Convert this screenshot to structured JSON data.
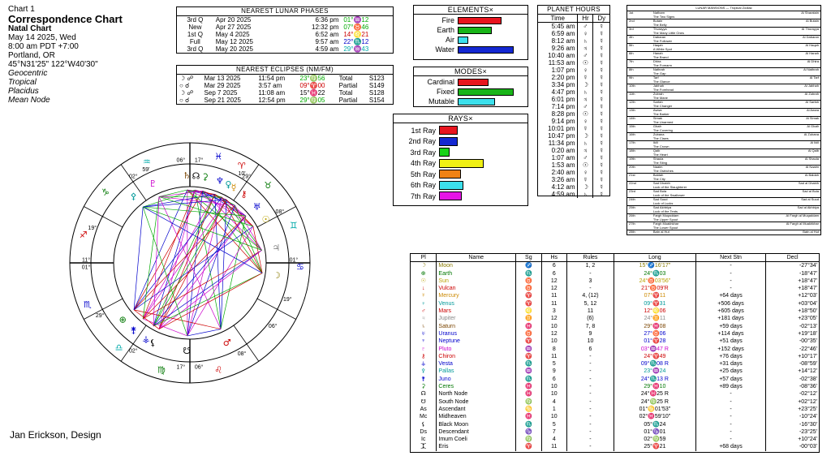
{
  "header": {
    "chart_label": "Chart 1",
    "title": "Correspondence Chart",
    "subtitle": "Natal Chart",
    "date": "May 14 2025, Wed",
    "time": "8:00 am  PDT +7:00",
    "place": "Portland, OR",
    "coords": "45°N31'25\" 122°W40'30\"",
    "options": [
      "Geocentric",
      "Tropical",
      "Placidus",
      "Mean Node"
    ]
  },
  "credit": "Jan Erickson, Design",
  "lunar_phases": {
    "title": "NEAREST LUNAR PHASES",
    "rows": [
      [
        "3rd Q",
        "Apr 20 2025",
        "6:36 pm",
        "01°♒12"
      ],
      [
        "New",
        "Apr 27 2025",
        "12:32 pm",
        "07°♉46"
      ],
      [
        "1st Q",
        "May 4 2025",
        "6:52 am",
        "14°♌21"
      ],
      [
        "Full",
        "May 12 2025",
        "9:57 am",
        "22°♏12"
      ],
      [
        "3rd Q",
        "May 20 2025",
        "4:59 am",
        "29°♒43"
      ]
    ],
    "colors": [
      "#00aa00",
      "#00aa00",
      "#cc0000",
      "#0000cc",
      "#00aaaa"
    ]
  },
  "eclipses": {
    "title": "NEAREST ECLIPSES (NM/FM)",
    "rows": [
      [
        "☽ ☍",
        "Mar 13 2025",
        "11:54 pm",
        "23°♍56",
        "Total",
        "S123"
      ],
      [
        "○ ☌",
        "Mar 29 2025",
        "3:57 am",
        "09°♈00",
        "Partial",
        "S149"
      ],
      [
        "☽ ☍",
        "Sep 7 2025",
        "11:08 am",
        "15°♓22",
        "Total",
        "S128"
      ],
      [
        "○ ☌",
        "Sep 21 2025",
        "12:54 pm",
        "29°♍05",
        "Partial",
        "S154"
      ]
    ],
    "colors": [
      "#00aa00",
      "#cc0000",
      "#000000",
      "#00aa00"
    ]
  },
  "elements": {
    "title": "ELEMENTS×",
    "items": [
      {
        "label": "Fire",
        "value": 0.68,
        "color": "#e8141e"
      },
      {
        "label": "Earth",
        "value": 0.52,
        "color": "#18b418"
      },
      {
        "label": "Air",
        "value": 0.16,
        "color": "#3ce0ec"
      },
      {
        "label": "Water",
        "value": 0.86,
        "color": "#1428d2"
      }
    ]
  },
  "modes": {
    "title": "MODES×",
    "items": [
      {
        "label": "Cardinal",
        "value": 0.48,
        "color": "#e8141e"
      },
      {
        "label": "Fixed",
        "value": 0.86,
        "color": "#18b418"
      },
      {
        "label": "Mutable",
        "value": 0.58,
        "color": "#3ce0ec"
      }
    ]
  },
  "rays": {
    "title": "RAYS×",
    "items": [
      {
        "label": "1st Ray",
        "value": 0.22,
        "color": "#e8141e"
      },
      {
        "label": "2nd Ray",
        "value": 0.22,
        "color": "#1428d2"
      },
      {
        "label": "3rd Ray",
        "value": 0.12,
        "color": "#18d418"
      },
      {
        "label": "4th Ray",
        "value": 0.52,
        "color": "#f0f014"
      },
      {
        "label": "5th Ray",
        "value": 0.25,
        "color": "#f08214"
      },
      {
        "label": "6th Ray",
        "value": 0.28,
        "color": "#3ce0ec"
      },
      {
        "label": "7th Ray",
        "value": 0.26,
        "color": "#e614e6"
      }
    ]
  },
  "planet_hours": {
    "title": "PLANET HOURS",
    "headers": [
      "Time",
      "Hr",
      "Dy"
    ],
    "rows": [
      [
        "5:45 am",
        "♂",
        "☿"
      ],
      [
        "6:59 am",
        "♀",
        "☿"
      ],
      [
        "8:12 am",
        "♄",
        "☿"
      ],
      [
        "9:26 am",
        "♃",
        "☿"
      ],
      [
        "10:40 am",
        "♂",
        "☿"
      ],
      [
        "11:53 am",
        "☉",
        "☿"
      ],
      [
        "1:07 pm",
        "♀",
        "☿"
      ],
      [
        "2:20 pm",
        "☿",
        "☿"
      ],
      [
        "3:34 pm",
        "☽",
        "☿"
      ],
      [
        "4:47 pm",
        "♄",
        "☿"
      ],
      [
        "6:01 pm",
        "♃",
        "☿"
      ],
      [
        "7:14 pm",
        "♂",
        "☿"
      ],
      [
        "8:28 pm",
        "☉",
        "☿"
      ],
      [
        "9:14 pm",
        "♀",
        "☿"
      ],
      [
        "10:01 pm",
        "☿",
        "☿"
      ],
      [
        "10:47 pm",
        "☽",
        "☿"
      ],
      [
        "11:34 pm",
        "♄",
        "☿"
      ],
      [
        "0:20 am",
        "♃",
        "☿"
      ],
      [
        "1:07 am",
        "♂",
        "☿"
      ],
      [
        "1:53 am",
        "☉",
        "☿"
      ],
      [
        "2:40 am",
        "♀",
        "☿"
      ],
      [
        "3:26 am",
        "☿",
        "☿"
      ],
      [
        "4:12 am",
        "☽",
        "☿"
      ],
      [
        "4:59 am",
        "♄",
        "☿"
      ]
    ]
  },
  "lunar_mansions": {
    "title": "LUNAR MANSIONS — Tropical Zodiac",
    "rows": [
      [
        "1st",
        "Natham",
        "Al Sharatain"
      ],
      [
        "",
        "The Two Signs",
        ""
      ],
      [
        "2nd",
        "Butain",
        "Al Butain"
      ],
      [
        "",
        "The Belly",
        ""
      ],
      [
        "3rd",
        "Thurayya",
        "Al Thurayya"
      ],
      [
        "",
        "The Many Little Ones",
        ""
      ],
      [
        "4th",
        "Dabaran",
        "Al Dabaran"
      ],
      [
        "",
        "The Follower",
        ""
      ],
      [
        "5th",
        "Haqah",
        "Al Haqah"
      ],
      [
        "",
        "A White Spot",
        ""
      ],
      [
        "6th",
        "Hanah",
        "Al Hanah"
      ],
      [
        "",
        "The Brand",
        ""
      ],
      [
        "7th",
        "Dhira",
        "Al Dhira"
      ],
      [
        "",
        "The Forearm",
        ""
      ],
      [
        "8th",
        "Nathrah",
        "Al Nathrah"
      ],
      [
        "",
        "The Gap",
        ""
      ],
      [
        "9th",
        "Tarf",
        "Al Tarf"
      ],
      [
        "",
        "The Glance",
        ""
      ],
      [
        "10th",
        "Jabhah",
        "Al Jabhah"
      ],
      [
        "",
        "The Forehead",
        ""
      ],
      [
        "11th",
        "Zubrah",
        "Al Zubrah"
      ],
      [
        "",
        "The Mane",
        ""
      ],
      [
        "12th",
        "Sarfah",
        "Al Sarfah"
      ],
      [
        "",
        "The Changer",
        ""
      ],
      [
        "13th",
        "Awwa",
        "Al Awwa"
      ],
      [
        "",
        "The Barker",
        ""
      ],
      [
        "14th",
        "Simak",
        "Al Simak"
      ],
      [
        "",
        "The Unarmed",
        ""
      ],
      [
        "15th",
        "Ghafr",
        "Al Ghafr"
      ],
      [
        "",
        "The Covering",
        ""
      ],
      [
        "16th",
        "Zubana",
        "Al Zubana"
      ],
      [
        "",
        "The Claws",
        ""
      ],
      [
        "17th",
        "Iklil",
        "Al Iklil"
      ],
      [
        "",
        "The Crown",
        ""
      ],
      [
        "18th",
        "Qalb",
        "Al Qalb"
      ],
      [
        "",
        "The Heart",
        ""
      ],
      [
        "19th",
        "Shaula",
        "Al Shaula"
      ],
      [
        "",
        "The Sting",
        ""
      ],
      [
        "20th",
        "Naaim",
        "Al Naaim"
      ],
      [
        "",
        "The Ostriches",
        ""
      ],
      [
        "21st",
        "Baldah",
        "Al Baldah"
      ],
      [
        "",
        "The City",
        ""
      ],
      [
        "22nd",
        "Sad Dhabih",
        "Sad al Dhabih"
      ],
      [
        "",
        "Luck of the Slaughterer",
        ""
      ],
      [
        "23rd",
        "Sad Bula",
        "Sad al Bula"
      ],
      [
        "",
        "Luck of the Swallower",
        ""
      ],
      [
        "24th",
        "Sad Suud",
        "Sad al Suud"
      ],
      [
        "",
        "Luck of Lucks",
        ""
      ],
      [
        "25th",
        "Sad Akhbiya",
        "Sad al Akhbiya"
      ],
      [
        "",
        "Luck of the Tents",
        ""
      ],
      [
        "26th",
        "Fargh Muqaddam",
        "Al Fargh al Muqaddam"
      ],
      [
        "",
        "The Upper Spout",
        ""
      ],
      [
        "27th",
        "Fargh Muakhkhar",
        "Al Fargh al Muakhkhar"
      ],
      [
        "",
        "The Lower Spout",
        ""
      ],
      [
        "28th",
        "Batn al Hut",
        "Batn al Hut"
      ],
      [
        "",
        "The Belly of the Fish",
        ""
      ]
    ]
  },
  "planets_table": {
    "headers": [
      "Pl",
      "Name",
      "Sg",
      "Hs",
      "Rules",
      "Long",
      "Next Stn",
      "Decl"
    ],
    "rows": [
      [
        "☽",
        "Moon",
        "♐",
        "6",
        "1, 2",
        "15°♐16'17\"",
        "-",
        "-27°34'",
        "#8a7a00"
      ],
      [
        "⊕",
        "Earth",
        "♏",
        "6",
        "-",
        "24°♏03",
        "-",
        "-18°47'",
        "#007700"
      ],
      [
        "☉",
        "Sun",
        "♉",
        "12",
        "3",
        "24°♉03'56\"",
        "-",
        "+18°47'",
        "#b8a000"
      ],
      [
        "↓",
        "Vulcan",
        "♉",
        "12",
        "-",
        "21°♉09'R",
        "-",
        "+18°47'",
        "#cc0000"
      ],
      [
        "☿",
        "Mercury",
        "♈",
        "11",
        "4, (12)",
        "07°♈11",
        "+64 days",
        "+12°03'",
        "#cc8800"
      ],
      [
        "♀",
        "Venus",
        "♈",
        "11",
        "5, 12",
        "09°♈31",
        "+506 days",
        "+03°04'",
        "#009999"
      ],
      [
        "♂",
        "Mars",
        "♌",
        "3",
        "11",
        "12°♌06",
        "+605 days",
        "+18°50'",
        "#cc0000"
      ],
      [
        "♃",
        "Jupiter",
        "♊",
        "12",
        "(6)",
        "24°♊11",
        "+181 days",
        "+23°05'",
        "#888888"
      ],
      [
        "♄",
        "Saturn",
        "♓",
        "10",
        "7, 8",
        "29°♓08",
        "+59 days",
        "-02°13'",
        "#7a4400"
      ],
      [
        "♅",
        "Uranus",
        "♉",
        "12",
        "9",
        "27°♉06",
        "+114 days",
        "+19°18'",
        "#0000cc"
      ],
      [
        "♆",
        "Neptune",
        "♈",
        "10",
        "10",
        "01°♈28",
        "+51 days",
        "-00°35'",
        "#0000cc"
      ],
      [
        "♇",
        "Pluto",
        "♒",
        "8",
        "6",
        "03°♒47 R",
        "+152 days",
        "-22°46'",
        "#cc00cc"
      ],
      [
        "⚷",
        "Chiron",
        "♈",
        "11",
        "-",
        "24°♈49",
        "+76 days",
        "+10°17'",
        "#cc0000"
      ],
      [
        "⚶",
        "Vesta",
        "♏",
        "5",
        "-",
        "09°♏08 R",
        "+31 days",
        "-08°59'",
        "#0000cc"
      ],
      [
        "⚴",
        "Pallas",
        "♒",
        "9",
        "-",
        "23°♒24",
        "+25 days",
        "+14°12'",
        "#009999"
      ],
      [
        "⚵",
        "Juno",
        "♏",
        "6",
        "-",
        "24°♏13 R",
        "+57 days",
        "-02°38'",
        "#0000cc"
      ],
      [
        "⚳",
        "Ceres",
        "♓",
        "10",
        "-",
        "29°♓10",
        "+89 days",
        "-08°36'",
        "#007700"
      ],
      [
        "☊",
        "North Node",
        "♓",
        "10",
        "-",
        "24°♓25 R",
        "-",
        "-02°12'",
        "#000000"
      ],
      [
        "☋",
        "South Node",
        "♍",
        "4",
        "-",
        "24°♍25 R",
        "-",
        "+02°12'",
        "#000000"
      ],
      [
        "As",
        "Ascendant",
        "♋",
        "1",
        "-",
        "01°♋01'53\"",
        "-",
        "+23°25'",
        "#000000"
      ],
      [
        "Mc",
        "Midheaven",
        "♓",
        "10",
        "-",
        "02°♓59'10\"",
        "-",
        "-10°24'",
        "#000000"
      ],
      [
        "⚸",
        "Black Moon",
        "♏",
        "5",
        "-",
        "05°♏24",
        "-",
        "-16°30'",
        "#000000"
      ],
      [
        "Ds",
        "Descendant",
        "♑",
        "7",
        "-",
        "01°♑01",
        "-",
        "-23°25'",
        "#000000"
      ],
      [
        "Ic",
        "Imum Coeli",
        "♍",
        "4",
        "-",
        "02°♍59",
        "-",
        "+10°24'",
        "#000000"
      ],
      [
        "⯰",
        "Eris",
        "♈",
        "11",
        "-",
        "25°♈21",
        "+68 days",
        "-00°03'",
        "#000000"
      ]
    ]
  },
  "wheel": {
    "cusp_labels": [
      {
        "text": "06°",
        "deg": 95
      },
      {
        "text": "17°",
        "deg": 85
      },
      {
        "text": "29°",
        "deg": 57
      },
      {
        "text": "08°",
        "deg": 30
      },
      {
        "text": "01°",
        "deg": 2
      },
      {
        "text": "19°",
        "deg": -20
      },
      {
        "text": "06°",
        "deg": -37
      },
      {
        "text": "08°",
        "deg": -60
      },
      {
        "text": "06°",
        "deg": -85
      },
      {
        "text": "17°",
        "deg": -95
      },
      {
        "text": "02°",
        "deg": -123
      },
      {
        "text": "29°",
        "deg": -150
      },
      {
        "text": "01°",
        "deg": -178
      },
      {
        "text": "19°",
        "deg": 160
      },
      {
        "text": "11°",
        "deg": 178
      },
      {
        "text": "02°",
        "deg": 123
      },
      {
        "text": "59'",
        "deg": 115
      },
      {
        "text": "10'",
        "deg": 60
      }
    ],
    "signs": [
      {
        "glyph": "♓",
        "deg": 75,
        "color": "#0000cc"
      },
      {
        "glyph": "♒",
        "deg": 113,
        "color": "#00aaaa"
      },
      {
        "glyph": "♑",
        "deg": 140,
        "color": "#007700"
      },
      {
        "glyph": "♐",
        "deg": 165,
        "color": "#cc0000"
      },
      {
        "glyph": "♏",
        "deg": -158,
        "color": "#0000cc"
      },
      {
        "glyph": "♎",
        "deg": -130,
        "color": "#00aaaa"
      },
      {
        "glyph": "♍",
        "deg": -105,
        "color": "#007700"
      },
      {
        "glyph": "♌",
        "deg": -75,
        "color": "#cc0000"
      },
      {
        "glyph": "♋",
        "deg": -2,
        "color": "#0000cc"
      },
      {
        "glyph": "♊",
        "deg": 20,
        "color": "#00aaaa"
      },
      {
        "glyph": "♉",
        "deg": 45,
        "color": "#007700"
      },
      {
        "glyph": "♈",
        "deg": 62,
        "color": "#cc0000"
      }
    ],
    "planets": [
      {
        "glyph": "♄",
        "deg": 92,
        "color": "#7a4400",
        "r": 0.84
      },
      {
        "glyph": "☊",
        "deg": 86,
        "color": "#000000",
        "r": 0.84
      },
      {
        "glyph": "⚳",
        "deg": 80,
        "color": "#007700",
        "r": 0.84
      },
      {
        "glyph": "♆",
        "deg": 70,
        "color": "#0000cc",
        "r": 0.84
      },
      {
        "glyph": "♀",
        "deg": 64,
        "color": "#009999",
        "r": 0.84
      },
      {
        "glyph": "☿",
        "deg": 60,
        "color": "#cc8800",
        "r": 0.84
      },
      {
        "glyph": "⚷",
        "deg": 52,
        "color": "#cc0000",
        "r": 0.84
      },
      {
        "glyph": "♅",
        "deg": 40,
        "color": "#0000cc",
        "r": 0.84
      },
      {
        "glyph": "☉",
        "deg": 30,
        "color": "#b8a000",
        "r": 0.84
      },
      {
        "glyph": "♃",
        "deg": 10,
        "color": "#888888",
        "r": 0.84
      },
      {
        "glyph": "♂",
        "deg": -65,
        "color": "#cc0000",
        "r": 0.84
      },
      {
        "glyph": "☽",
        "deg": -8,
        "color": "#8a7a00",
        "r": 0.84
      },
      {
        "glyph": "⚵",
        "deg": -130,
        "color": "#0000cc",
        "r": 0.84
      },
      {
        "glyph": "⊕",
        "deg": -140,
        "color": "#007700",
        "r": 0.84
      },
      {
        "glyph": "⚶",
        "deg": -120,
        "color": "#0000cc",
        "r": 0.84
      },
      {
        "glyph": "☋",
        "deg": -92,
        "color": "#000000",
        "r": 0.84
      },
      {
        "glyph": "⚸",
        "deg": -115,
        "color": "#000000",
        "r": 0.84
      },
      {
        "glyph": "♇",
        "deg": 115,
        "color": "#cc00cc",
        "r": 0.84
      },
      {
        "glyph": "⚴",
        "deg": 130,
        "color": "#009999",
        "r": 0.84
      }
    ]
  }
}
